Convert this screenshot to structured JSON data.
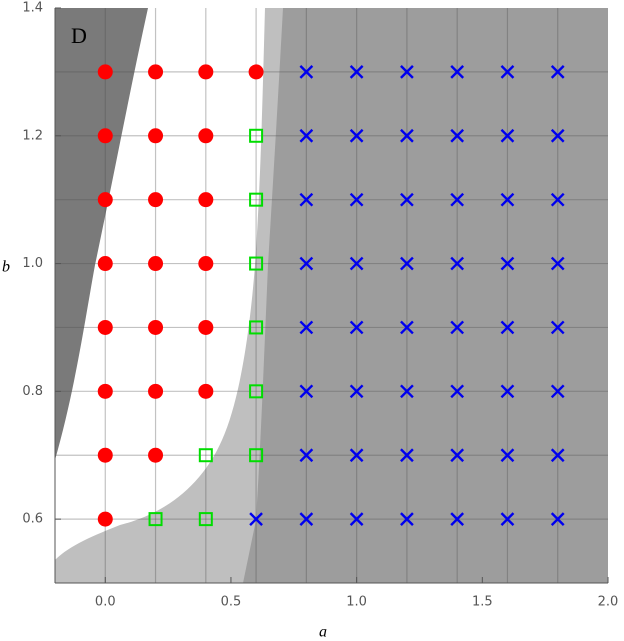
{
  "chart_data": {
    "type": "scatter",
    "panel_label": "D",
    "x_label": "a",
    "y_label": "b",
    "xlim": [
      -0.2,
      2.0
    ],
    "ylim": [
      0.5,
      1.4
    ],
    "xticks": [
      {
        "value": 0,
        "label": "0.0"
      },
      0.5,
      {
        "value": 1,
        "label": "1.0"
      },
      1.5,
      {
        "value": 2,
        "label": "2.0"
      }
    ],
    "yticks": [
      0.6,
      0.8,
      {
        "value": 1,
        "label": "1.0"
      },
      1.2,
      1.4
    ],
    "grid": true,
    "series": [
      {
        "marker": "circle",
        "color": "#ff0000",
        "x": [
          0,
          0.2,
          0.4,
          0.6,
          0,
          0.2,
          0.4,
          0,
          0.2,
          0.4,
          0,
          0.2,
          0.4,
          0,
          0.2,
          0.4,
          0,
          0.2,
          0.4,
          0,
          0.2,
          0
        ],
        "y": [
          1.3,
          1.3,
          1.3,
          1.3,
          1.2,
          1.2,
          1.2,
          1.1,
          1.1,
          1.1,
          1.0,
          1.0,
          1.0,
          0.9,
          0.9,
          0.9,
          0.8,
          0.8,
          0.8,
          0.7,
          0.7,
          0.6
        ]
      },
      {
        "marker": "square",
        "color": "#00dd00",
        "x": [
          0.6,
          0.6,
          0.6,
          0.6,
          0.6,
          0.4,
          0.6,
          0.2,
          0.4
        ],
        "y": [
          1.2,
          1.1,
          1.0,
          0.9,
          0.8,
          0.7,
          0.7,
          0.6,
          0.6
        ]
      },
      {
        "marker": "cross",
        "color": "#0000ee",
        "x": [
          0.8,
          1.0,
          1.2,
          1.4,
          1.6,
          1.8,
          0.8,
          1.0,
          1.2,
          1.4,
          1.6,
          1.8,
          0.8,
          1.0,
          1.2,
          1.4,
          1.6,
          1.8,
          0.8,
          1.0,
          1.2,
          1.4,
          1.6,
          1.8,
          0.8,
          1.0,
          1.2,
          1.4,
          1.6,
          1.8,
          0.8,
          1.0,
          1.2,
          1.4,
          1.6,
          1.8,
          0.8,
          1.0,
          1.2,
          1.4,
          1.6,
          1.8,
          0.6,
          0.8,
          1.0,
          1.2,
          1.4,
          1.6,
          1.8
        ],
        "y": [
          1.3,
          1.3,
          1.3,
          1.3,
          1.3,
          1.3,
          1.2,
          1.2,
          1.2,
          1.2,
          1.2,
          1.2,
          1.1,
          1.1,
          1.1,
          1.1,
          1.1,
          1.1,
          1.0,
          1.0,
          1.0,
          1.0,
          1.0,
          1.0,
          0.9,
          0.9,
          0.9,
          0.9,
          0.9,
          0.9,
          0.8,
          0.8,
          0.8,
          0.8,
          0.8,
          0.8,
          0.7,
          0.7,
          0.7,
          0.7,
          0.7,
          0.7,
          0.6,
          0.6,
          0.6,
          0.6,
          0.6,
          0.6,
          0.6
        ]
      }
    ]
  }
}
